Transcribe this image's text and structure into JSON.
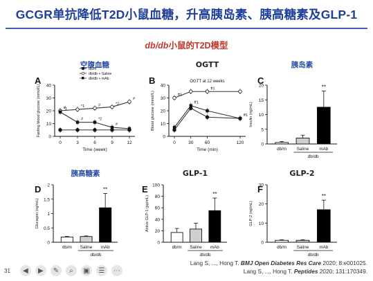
{
  "slide": {
    "title": "GCGR单抗降低T2D小鼠血糖，升高胰岛素、胰高糖素及GLP-1",
    "subtitle_em": "db/db",
    "subtitle_rest": "小鼠的T2D模型",
    "page_number": "31",
    "citations": [
      {
        "pre": "Lang S, ..., Hong T. ",
        "journal": "BMJ Open Diabetes Res Care",
        "post": " 2020; 8:e001025."
      },
      {
        "pre": "Lang S, ..., Hong T. ",
        "journal": "Peptides",
        "post": " 2020; 131:170349."
      }
    ]
  },
  "toolbar": {
    "icons": [
      "prev-icon",
      "next-icon",
      "pen-icon",
      "zoom-icon",
      "camera-icon",
      "subtitle-icon",
      "more-icon"
    ]
  },
  "colors": {
    "title": "#1f3f98",
    "subtitle": "#c0392b",
    "panel_title_cn": "#2e4fa8",
    "panel_title_en": "#222222",
    "saline_bar": "#cfcfcf",
    "mab_bar": "#000000",
    "dbm_bar": "#ffffff"
  },
  "chart_data": [
    {
      "panel": "A",
      "title": "空腹血糖",
      "type": "line",
      "xlabel": "Time (week)",
      "ylabel": "Fasting blood glucose (mmol/L)",
      "x": [
        0,
        3,
        6,
        9,
        12
      ],
      "ylim": [
        0,
        40
      ],
      "yticks": [
        0,
        10,
        20,
        30,
        40
      ],
      "legend": [
        "db/m",
        "db/db + Saline",
        "db/db + mAb"
      ],
      "series": [
        {
          "name": "db/m",
          "marker": "filled-circle",
          "values": [
            5,
            5,
            5,
            5,
            5
          ]
        },
        {
          "name": "db/db + Saline",
          "marker": "open-circle",
          "values": [
            20,
            21,
            22,
            23,
            27
          ]
        },
        {
          "name": "db/db + mAb",
          "marker": "filled-square",
          "values": [
            19,
            11,
            11,
            7,
            6
          ]
        }
      ],
      "annotations": [
        "#",
        "#",
        "#",
        "#",
        "#",
        "*1",
        "*1",
        "*2",
        "*2"
      ]
    },
    {
      "panel": "B",
      "title": "OGTT",
      "type": "line",
      "inset_title": "OGTT at 12 weeks",
      "xlabel": "Time (min)",
      "ylabel": "Blood glucose (mmol/L)",
      "x": [
        0,
        30,
        60,
        120
      ],
      "ylim": [
        0,
        40
      ],
      "yticks": [
        0,
        10,
        20,
        30,
        40
      ],
      "series": [
        {
          "name": "db/m",
          "marker": "filled-circle",
          "values": [
            5,
            22,
            15,
            14
          ]
        },
        {
          "name": "db/db + Saline",
          "marker": "open-circle",
          "values": [
            30,
            35,
            35,
            35
          ]
        },
        {
          "name": "db/db + mAb",
          "marker": "filled-square",
          "values": [
            7,
            24,
            20,
            14
          ]
        }
      ],
      "annotations": [
        "#1",
        "#1",
        "#1",
        "#1",
        "*",
        "*",
        "*",
        "*"
      ]
    },
    {
      "panel": "C",
      "title": "胰岛素",
      "type": "bar",
      "ylabel": "Insulin (ng/mL)",
      "categories": [
        "db/m",
        "Saline",
        "mAb"
      ],
      "group_label": "db/db",
      "values": [
        0.5,
        2.0,
        12.5
      ],
      "errors": [
        0.3,
        1.0,
        5.5
      ],
      "ylim": [
        0,
        20
      ],
      "yticks": [
        0,
        5,
        10,
        15,
        20
      ],
      "sig": "**"
    },
    {
      "panel": "D",
      "title": "胰高糖素",
      "type": "bar",
      "ylabel": "Glucagon (ng/mL)",
      "categories": [
        "db/m",
        "Saline",
        "mAb"
      ],
      "group_label": "db/db",
      "values": [
        0.18,
        0.2,
        1.2
      ],
      "errors": [
        0.02,
        0.02,
        0.5
      ],
      "ylim": [
        0,
        2.0
      ],
      "yticks": [
        0.0,
        0.5,
        1.0,
        1.5,
        2.0
      ],
      "sig": "**"
    },
    {
      "panel": "E",
      "title": "GLP-1",
      "type": "bar",
      "ylabel": "Active GLP-1 (pg/mL)",
      "categories": [
        "db/m",
        "Saline",
        "mAb"
      ],
      "group_label": "db/db",
      "values": [
        17,
        23,
        55
      ],
      "errors": [
        7,
        10,
        22
      ],
      "ylim": [
        0,
        100
      ],
      "yticks": [
        0,
        20,
        40,
        60,
        80,
        100
      ],
      "sig": "**"
    },
    {
      "panel": "F",
      "title": "GLP-2",
      "type": "bar",
      "ylabel": "GLP-2 (ng/mL)",
      "categories": [
        "db/m",
        "Saline",
        "mAb"
      ],
      "group_label": "db/db",
      "values": [
        1,
        1,
        17
      ],
      "errors": [
        0.3,
        0.3,
        5
      ],
      "ylim": [
        0,
        30
      ],
      "yticks": [
        0,
        10,
        20,
        30
      ],
      "sig": "**"
    }
  ]
}
